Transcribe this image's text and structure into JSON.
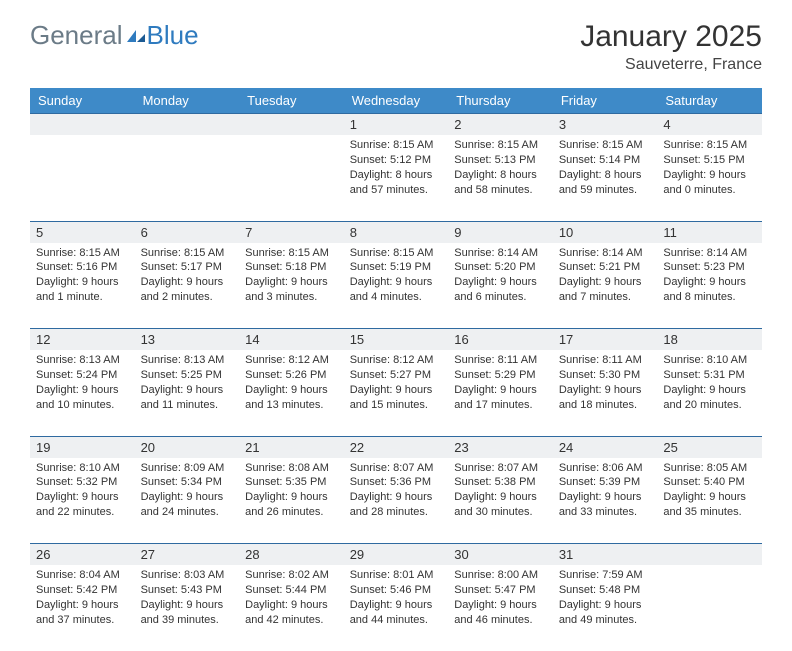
{
  "brand": {
    "part1": "General",
    "part2": "Blue"
  },
  "title": "January 2025",
  "subtitle": "Sauveterre, France",
  "colors": {
    "header_bg": "#3e8ac8",
    "header_text": "#ffffff",
    "daynum_bg": "#eef0f2",
    "rule": "#2f6aa0",
    "logo_gray": "#6b7b87",
    "logo_blue": "#2f7bbf"
  },
  "weekdays": [
    "Sunday",
    "Monday",
    "Tuesday",
    "Wednesday",
    "Thursday",
    "Friday",
    "Saturday"
  ],
  "weeks": [
    [
      null,
      null,
      null,
      {
        "n": "1",
        "sunrise": "8:15 AM",
        "sunset": "5:12 PM",
        "daylight": "8 hours and 57 minutes."
      },
      {
        "n": "2",
        "sunrise": "8:15 AM",
        "sunset": "5:13 PM",
        "daylight": "8 hours and 58 minutes."
      },
      {
        "n": "3",
        "sunrise": "8:15 AM",
        "sunset": "5:14 PM",
        "daylight": "8 hours and 59 minutes."
      },
      {
        "n": "4",
        "sunrise": "8:15 AM",
        "sunset": "5:15 PM",
        "daylight": "9 hours and 0 minutes."
      }
    ],
    [
      {
        "n": "5",
        "sunrise": "8:15 AM",
        "sunset": "5:16 PM",
        "daylight": "9 hours and 1 minute."
      },
      {
        "n": "6",
        "sunrise": "8:15 AM",
        "sunset": "5:17 PM",
        "daylight": "9 hours and 2 minutes."
      },
      {
        "n": "7",
        "sunrise": "8:15 AM",
        "sunset": "5:18 PM",
        "daylight": "9 hours and 3 minutes."
      },
      {
        "n": "8",
        "sunrise": "8:15 AM",
        "sunset": "5:19 PM",
        "daylight": "9 hours and 4 minutes."
      },
      {
        "n": "9",
        "sunrise": "8:14 AM",
        "sunset": "5:20 PM",
        "daylight": "9 hours and 6 minutes."
      },
      {
        "n": "10",
        "sunrise": "8:14 AM",
        "sunset": "5:21 PM",
        "daylight": "9 hours and 7 minutes."
      },
      {
        "n": "11",
        "sunrise": "8:14 AM",
        "sunset": "5:23 PM",
        "daylight": "9 hours and 8 minutes."
      }
    ],
    [
      {
        "n": "12",
        "sunrise": "8:13 AM",
        "sunset": "5:24 PM",
        "daylight": "9 hours and 10 minutes."
      },
      {
        "n": "13",
        "sunrise": "8:13 AM",
        "sunset": "5:25 PM",
        "daylight": "9 hours and 11 minutes."
      },
      {
        "n": "14",
        "sunrise": "8:12 AM",
        "sunset": "5:26 PM",
        "daylight": "9 hours and 13 minutes."
      },
      {
        "n": "15",
        "sunrise": "8:12 AM",
        "sunset": "5:27 PM",
        "daylight": "9 hours and 15 minutes."
      },
      {
        "n": "16",
        "sunrise": "8:11 AM",
        "sunset": "5:29 PM",
        "daylight": "9 hours and 17 minutes."
      },
      {
        "n": "17",
        "sunrise": "8:11 AM",
        "sunset": "5:30 PM",
        "daylight": "9 hours and 18 minutes."
      },
      {
        "n": "18",
        "sunrise": "8:10 AM",
        "sunset": "5:31 PM",
        "daylight": "9 hours and 20 minutes."
      }
    ],
    [
      {
        "n": "19",
        "sunrise": "8:10 AM",
        "sunset": "5:32 PM",
        "daylight": "9 hours and 22 minutes."
      },
      {
        "n": "20",
        "sunrise": "8:09 AM",
        "sunset": "5:34 PM",
        "daylight": "9 hours and 24 minutes."
      },
      {
        "n": "21",
        "sunrise": "8:08 AM",
        "sunset": "5:35 PM",
        "daylight": "9 hours and 26 minutes."
      },
      {
        "n": "22",
        "sunrise": "8:07 AM",
        "sunset": "5:36 PM",
        "daylight": "9 hours and 28 minutes."
      },
      {
        "n": "23",
        "sunrise": "8:07 AM",
        "sunset": "5:38 PM",
        "daylight": "9 hours and 30 minutes."
      },
      {
        "n": "24",
        "sunrise": "8:06 AM",
        "sunset": "5:39 PM",
        "daylight": "9 hours and 33 minutes."
      },
      {
        "n": "25",
        "sunrise": "8:05 AM",
        "sunset": "5:40 PM",
        "daylight": "9 hours and 35 minutes."
      }
    ],
    [
      {
        "n": "26",
        "sunrise": "8:04 AM",
        "sunset": "5:42 PM",
        "daylight": "9 hours and 37 minutes."
      },
      {
        "n": "27",
        "sunrise": "8:03 AM",
        "sunset": "5:43 PM",
        "daylight": "9 hours and 39 minutes."
      },
      {
        "n": "28",
        "sunrise": "8:02 AM",
        "sunset": "5:44 PM",
        "daylight": "9 hours and 42 minutes."
      },
      {
        "n": "29",
        "sunrise": "8:01 AM",
        "sunset": "5:46 PM",
        "daylight": "9 hours and 44 minutes."
      },
      {
        "n": "30",
        "sunrise": "8:00 AM",
        "sunset": "5:47 PM",
        "daylight": "9 hours and 46 minutes."
      },
      {
        "n": "31",
        "sunrise": "7:59 AM",
        "sunset": "5:48 PM",
        "daylight": "9 hours and 49 minutes."
      },
      null
    ]
  ],
  "labels": {
    "sunrise": "Sunrise:",
    "sunset": "Sunset:",
    "daylight": "Daylight:"
  }
}
